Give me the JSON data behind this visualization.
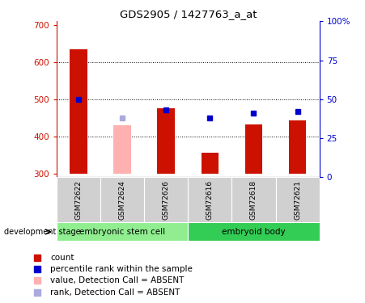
{
  "title": "GDS2905 / 1427763_a_at",
  "samples": [
    "GSM72622",
    "GSM72624",
    "GSM72626",
    "GSM72616",
    "GSM72618",
    "GSM72621"
  ],
  "groups": [
    {
      "name": "embryonic stem cell",
      "indices": [
        0,
        1,
        2
      ],
      "color": "#90EE90"
    },
    {
      "name": "embryoid body",
      "indices": [
        3,
        4,
        5
      ],
      "color": "#33CC55"
    }
  ],
  "bar_values": [
    635,
    430,
    475,
    355,
    432,
    442
  ],
  "bar_absent": [
    false,
    true,
    false,
    false,
    false,
    false
  ],
  "bar_bottom": 300,
  "rank_values": [
    500,
    450,
    472,
    450,
    462,
    468
  ],
  "rank_absent": [
    false,
    true,
    false,
    false,
    false,
    false
  ],
  "ylim_left": [
    290,
    710
  ],
  "ylim_right": [
    0,
    100
  ],
  "yticks_left": [
    300,
    400,
    500,
    600,
    700
  ],
  "yticks_right": [
    0,
    25,
    50,
    75,
    100
  ],
  "ytick_labels_right": [
    "0",
    "25",
    "50",
    "75",
    "100%"
  ],
  "grid_lines": [
    400,
    500,
    600
  ],
  "bar_color_present": "#CC1100",
  "bar_color_absent": "#FFB0B0",
  "rank_color_present": "#0000CC",
  "rank_color_absent": "#AAAADD",
  "bar_width": 0.4,
  "left_color": "#CC1100",
  "right_color": "#0000CC",
  "legend_items": [
    {
      "label": "count",
      "color": "#CC1100"
    },
    {
      "label": "percentile rank within the sample",
      "color": "#0000CC"
    },
    {
      "label": "value, Detection Call = ABSENT",
      "color": "#FFB0B0"
    },
    {
      "label": "rank, Detection Call = ABSENT",
      "color": "#AAAADD"
    }
  ],
  "dev_stage_label": "development stage",
  "sample_box_color": "#D0D0D0",
  "group1_color": "#90EE90",
  "group2_color": "#33CC55"
}
